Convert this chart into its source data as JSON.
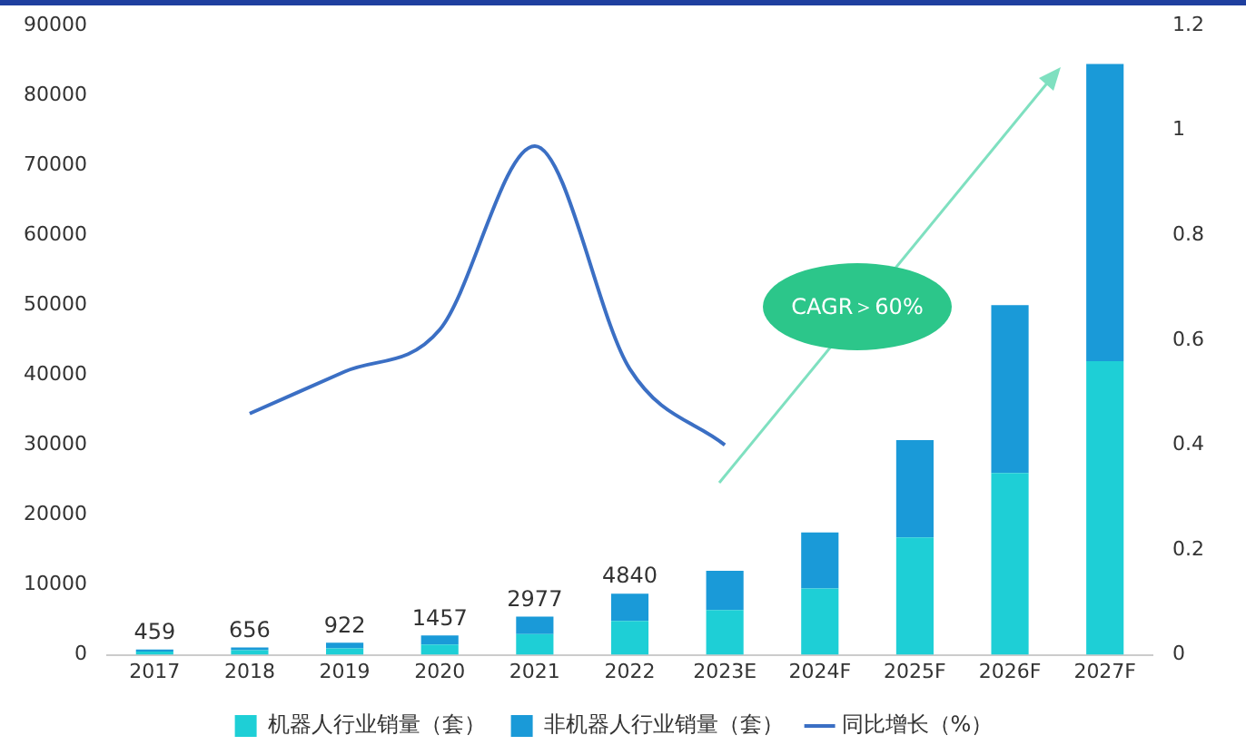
{
  "chart_data": {
    "type": "bar",
    "stacked": true,
    "categories": [
      "2017",
      "2018",
      "2019",
      "2020",
      "2021",
      "2022",
      "2023E",
      "2024F",
      "2025F",
      "2026F",
      "2027F"
    ],
    "series": [
      {
        "name": "机器人行业销量（套）",
        "color": "#1ecfd6",
        "values": [
          459,
          656,
          922,
          1457,
          2977,
          4840,
          6400,
          9500,
          16800,
          26000,
          42000
        ],
        "value_labels": [
          "459",
          "656",
          "922",
          "1457",
          "2977",
          "4840",
          null,
          null,
          null,
          null,
          null
        ]
      },
      {
        "name": "非机器人行业销量（套）",
        "color": "#1a9ad8",
        "values": [
          300,
          400,
          800,
          1300,
          2500,
          3900,
          5600,
          8000,
          13900,
          24000,
          42500
        ]
      },
      {
        "name": "同比增长（%）",
        "type": "line",
        "axis": "y2",
        "color": "#3b6fc4",
        "values": [
          null,
          0.46,
          0.54,
          0.62,
          0.97,
          0.545,
          0.4,
          null,
          null,
          null,
          null
        ]
      }
    ],
    "ylim": [
      0,
      90000
    ],
    "yticks": [
      0,
      10000,
      20000,
      30000,
      40000,
      50000,
      60000,
      70000,
      80000,
      90000
    ],
    "y2lim": [
      0,
      1.2
    ],
    "y2ticks": [
      0,
      0.2,
      0.4,
      0.6,
      0.8,
      1,
      1.2
    ],
    "annotations": [
      "CAGR＞60%"
    ],
    "legend": "bottom",
    "grid": false,
    "marker": "none",
    "line_style": "solid"
  }
}
